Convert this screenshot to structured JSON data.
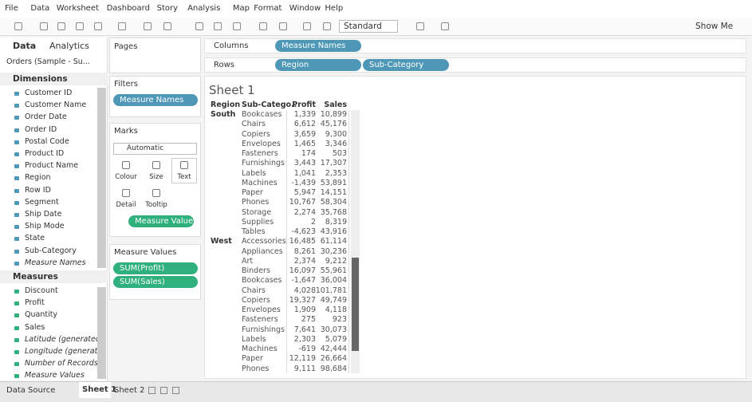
{
  "menu": [
    "File",
    "Data",
    "Worksheet",
    "Dashboard",
    "Story",
    "Analysis",
    "Map",
    "Format",
    "Window",
    "Help"
  ],
  "toolbar": {
    "fit": "Standard",
    "show_me": "Show Me"
  },
  "data_pane": {
    "tabs": [
      "Data",
      "Analytics"
    ],
    "source": "Orders (Sample - Su...",
    "dimensions_title": "Dimensions",
    "dimensions": [
      "Customer ID",
      "Customer Name",
      "Order Date",
      "Order ID",
      "Postal Code",
      "Product ID",
      "Product Name",
      "Region",
      "Row ID",
      "Segment",
      "Ship Date",
      "Ship Mode",
      "State",
      "Sub-Category",
      "Measure Names"
    ],
    "measures_title": "Measures",
    "measures": [
      "Discount",
      "Profit",
      "Quantity",
      "Sales",
      "Latitude (generated)",
      "Longitude (generat...",
      "Number of Records",
      "Measure Values"
    ]
  },
  "cards": {
    "pages": "Pages",
    "filters": "Filters",
    "filter_pills": [
      "Measure Names"
    ],
    "marks": "Marks",
    "mark_type": "Automatic",
    "mark_buttons": [
      "Colour",
      "Size",
      "Text",
      "Detail",
      "Tooltip"
    ],
    "marks_pill": "Measure Values",
    "measure_values_title": "Measure Values",
    "measure_values_pills": [
      "SUM(Profit)",
      "SUM(Sales)"
    ]
  },
  "shelves": {
    "columns_label": "Columns",
    "columns": [
      "Measure Names"
    ],
    "rows_label": "Rows",
    "rows": [
      "Region",
      "Sub-Category"
    ]
  },
  "view": {
    "title": "Sheet 1",
    "headers": [
      "Region",
      "Sub-Catego..",
      "Profit",
      "Sales"
    ],
    "groups": [
      {
        "region": "South",
        "rows": [
          [
            "Bookcases",
            "1,339",
            "10,899"
          ],
          [
            "Chairs",
            "6,612",
            "45,176"
          ],
          [
            "Copiers",
            "3,659",
            "9,300"
          ],
          [
            "Envelopes",
            "1,465",
            "3,346"
          ],
          [
            "Fasteners",
            "174",
            "503"
          ],
          [
            "Furnishings",
            "3,443",
            "17,307"
          ],
          [
            "Labels",
            "1,041",
            "2,353"
          ],
          [
            "Machines",
            "-1,439",
            "53,891"
          ],
          [
            "Paper",
            "5,947",
            "14,151"
          ],
          [
            "Phones",
            "10,767",
            "58,304"
          ],
          [
            "Storage",
            "2,274",
            "35,768"
          ],
          [
            "Supplies",
            "2",
            "8,319"
          ],
          [
            "Tables",
            "-4,623",
            "43,916"
          ]
        ]
      },
      {
        "region": "West",
        "rows": [
          [
            "Accessories",
            "16,485",
            "61,114"
          ],
          [
            "Appliances",
            "8,261",
            "30,236"
          ],
          [
            "Art",
            "2,374",
            "9,212"
          ],
          [
            "Binders",
            "16,097",
            "55,961"
          ],
          [
            "Bookcases",
            "-1,647",
            "36,004"
          ],
          [
            "Chairs",
            "4,028",
            "101,781"
          ],
          [
            "Copiers",
            "19,327",
            "49,749"
          ],
          [
            "Envelopes",
            "1,909",
            "4,118"
          ],
          [
            "Fasteners",
            "275",
            "923"
          ],
          [
            "Furnishings",
            "7,641",
            "30,073"
          ],
          [
            "Labels",
            "2,303",
            "5,079"
          ],
          [
            "Machines",
            "-619",
            "42,444"
          ],
          [
            "Paper",
            "12,119",
            "26,664"
          ],
          [
            "Phones",
            "9,111",
            "98,684"
          ]
        ]
      }
    ]
  },
  "tabs": [
    "Data Source",
    "Sheet 1",
    "Sheet 2"
  ]
}
